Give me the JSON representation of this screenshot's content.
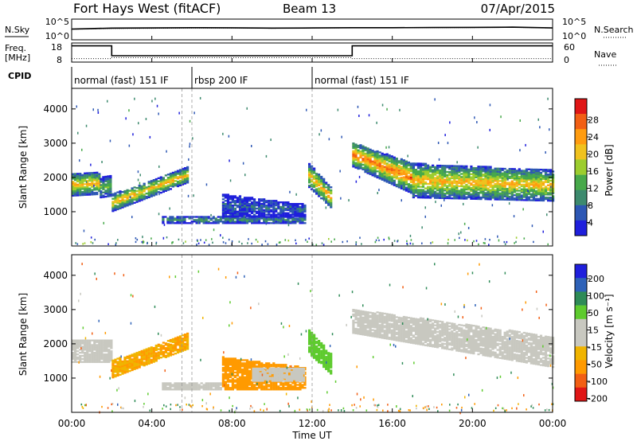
{
  "header": {
    "title": "Fort Hays West (fitACF)",
    "beam": "Beam 13",
    "date": "07/Apr/2015"
  },
  "noise_panel": {
    "left_label": "N.Sky",
    "right_label": "N.Search",
    "left_ticks": [
      "10^5",
      "10^0"
    ],
    "right_ticks": [
      "10^5",
      "10^0"
    ]
  },
  "freq_panel": {
    "left_label_1": "Freq.",
    "left_label_2": "[MHz]",
    "right_label": "Nave",
    "left_ticks": [
      "18",
      "8"
    ],
    "right_ticks": [
      "60",
      "0"
    ]
  },
  "cpid_panel": {
    "label": "CPID",
    "segments": [
      {
        "label": "normal (fast) 151 IF",
        "start_h": 0,
        "end_h": 6
      },
      {
        "label": "rbsp 200 IF",
        "start_h": 6,
        "end_h": 12
      },
      {
        "label": "normal (fast) 151 IF",
        "start_h": 12,
        "end_h": 24
      }
    ]
  },
  "xaxis": {
    "label": "Time UT",
    "ticks": [
      "00:00",
      "04:00",
      "08:00",
      "12:00",
      "16:00",
      "20:00",
      "00:00"
    ]
  },
  "colors": {
    "power_scale": [
      "#1f1fdc",
      "#2d57b4",
      "#3d8a6e",
      "#47a94a",
      "#9ccd2e",
      "#f0c21e",
      "#ff9c10",
      "#f25f14",
      "#e01616"
    ],
    "velocity_scale": [
      "#e01616",
      "#f25f14",
      "#ff9a00",
      "#f0b400",
      "#c8c8c0",
      "#c8c8c0",
      "#5ecb2e",
      "#2e8b57",
      "#2e62b8",
      "#1f1fdc"
    ]
  },
  "chart_data": [
    {
      "type": "line",
      "panel": "noise",
      "series": [
        {
          "name": "N.Sky",
          "x": [
            0,
            2,
            4,
            6,
            8,
            10,
            12,
            14,
            16,
            18,
            20,
            22,
            24
          ],
          "y": [
            400,
            700,
            800,
            900,
            850,
            700,
            800,
            900,
            900,
            1000,
            1100,
            1300,
            800
          ]
        },
        {
          "name": "N.Search",
          "x": [
            0,
            2,
            4,
            6,
            8,
            10,
            12,
            14,
            16,
            18,
            20,
            22,
            24
          ],
          "y": [
            300,
            500,
            600,
            700,
            700,
            600,
            700,
            800,
            800,
            900,
            900,
            1000,
            700
          ]
        }
      ],
      "ylim": [
        1,
        100000
      ],
      "yscale": "log"
    },
    {
      "type": "line",
      "panel": "frequency",
      "series": [
        {
          "name": "Freq. [MHz]",
          "x": [
            0,
            2,
            2,
            14,
            14,
            24
          ],
          "y": [
            16.8,
            16.8,
            11.2,
            11.2,
            16.8,
            16.8
          ]
        },
        {
          "name": "Nave",
          "x": [
            0,
            2,
            2,
            14,
            14,
            24
          ],
          "y": [
            9,
            9,
            12,
            12,
            9,
            9
          ]
        }
      ],
      "ylim_left": [
        8,
        18
      ],
      "ylim_right": [
        0,
        60
      ]
    },
    {
      "type": "heatmap",
      "panel": "power",
      "title": "Power [dB]",
      "xlabel": "Time UT",
      "ylabel": "Slant Range [km]",
      "xlim": [
        0,
        24
      ],
      "ylim": [
        0,
        4600
      ],
      "yticks": [
        1000,
        2000,
        3000,
        4000
      ],
      "colorbar_ticks": [
        4,
        8,
        12,
        16,
        20,
        24,
        28
      ],
      "colorbar_range": [
        0,
        32
      ],
      "bands": [
        {
          "t0": 0.0,
          "t1": 1.4,
          "r_lo": 1450,
          "r_hi": 2100,
          "r_lo_end": 1500,
          "r_hi_end": 2150,
          "core": 22
        },
        {
          "t0": 1.4,
          "t1": 2.0,
          "r_lo": 1400,
          "r_hi": 2000,
          "r_lo_end": 1450,
          "r_hi_end": 2050,
          "core": 14
        },
        {
          "t0": 2.0,
          "t1": 5.8,
          "r_lo": 1000,
          "r_hi": 1500,
          "r_lo_end": 1850,
          "r_hi_end": 2300,
          "core": 22
        },
        {
          "t0": 4.5,
          "t1": 11.6,
          "r_lo": 650,
          "r_hi": 850,
          "r_lo_end": 650,
          "r_hi_end": 850,
          "core": 10
        },
        {
          "t0": 7.5,
          "t1": 11.6,
          "r_lo": 850,
          "r_hi": 1500,
          "r_lo_end": 850,
          "r_hi_end": 1200,
          "core": 6
        },
        {
          "t0": 11.8,
          "t1": 12.9,
          "r_lo": 1700,
          "r_hi": 2400,
          "r_lo_end": 1100,
          "r_hi_end": 1700,
          "core": 22
        },
        {
          "t0": 14.0,
          "t1": 17.0,
          "r_lo": 2300,
          "r_hi": 3000,
          "r_lo_end": 1500,
          "r_hi_end": 2400,
          "core": 26
        },
        {
          "t0": 17.0,
          "t1": 24.0,
          "r_lo": 1400,
          "r_hi": 2400,
          "r_lo_end": 1300,
          "r_hi_end": 2200,
          "core": 22
        }
      ]
    },
    {
      "type": "heatmap",
      "panel": "velocity",
      "title": "Velocity [m s⁻¹]",
      "xlabel": "Time UT",
      "ylabel": "Slant Range [km]",
      "xlim": [
        0,
        24
      ],
      "ylim": [
        0,
        4600
      ],
      "yticks": [
        1000,
        2000,
        3000,
        4000
      ],
      "colorbar_ticks": [
        200,
        100,
        50,
        15,
        -15,
        -50,
        -100,
        -200
      ],
      "bands": [
        {
          "t0": 0.0,
          "t1": 2.0,
          "r_lo": 1450,
          "r_hi": 2100,
          "r_lo_end": 1450,
          "r_hi_end": 2100,
          "v": 0
        },
        {
          "t0": 2.0,
          "t1": 5.8,
          "r_lo": 1000,
          "r_hi": 1500,
          "r_lo_end": 1850,
          "r_hi_end": 2300,
          "v": -30
        },
        {
          "t0": 4.5,
          "t1": 7.5,
          "r_lo": 650,
          "r_hi": 850,
          "r_lo_end": 650,
          "r_hi_end": 850,
          "v": 0
        },
        {
          "t0": 7.5,
          "t1": 11.6,
          "r_lo": 650,
          "r_hi": 1600,
          "r_lo_end": 650,
          "r_hi_end": 1300,
          "v": -60
        },
        {
          "t0": 9.0,
          "t1": 11.6,
          "r_lo": 900,
          "r_hi": 1300,
          "r_lo_end": 900,
          "r_hi_end": 1300,
          "v": 0
        },
        {
          "t0": 11.8,
          "t1": 12.9,
          "r_lo": 1700,
          "r_hi": 2400,
          "r_lo_end": 1100,
          "r_hi_end": 1700,
          "v": 30
        },
        {
          "t0": 14.0,
          "t1": 24.0,
          "r_lo": 2300,
          "r_hi": 3000,
          "r_lo_end": 1300,
          "r_hi_end": 2200,
          "v": 0
        }
      ]
    }
  ]
}
